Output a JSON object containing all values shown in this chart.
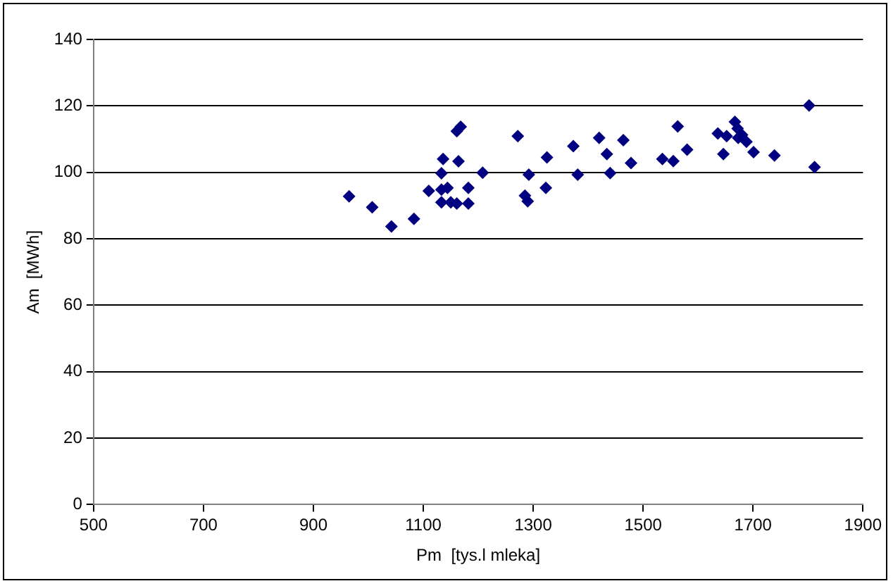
{
  "chart_data": {
    "type": "scatter",
    "xlabel": "Pm  [tys.l mleka]",
    "ylabel": "Am  [MWh]",
    "xlim": [
      500,
      1900
    ],
    "xticks": [
      500,
      700,
      900,
      1100,
      1300,
      1500,
      1700,
      1900
    ],
    "ylim": [
      0,
      140
    ],
    "yticks": [
      0,
      20,
      40,
      60,
      80,
      100,
      120,
      140
    ],
    "grid": "y",
    "legend": false,
    "marker": "diamond",
    "series": [
      {
        "color": "#000080",
        "x": [
          965,
          1007,
          1042,
          1083,
          1110,
          1133,
          1144,
          1133,
          1136,
          1133,
          1150,
          1161,
          1182,
          1182,
          1164,
          1161,
          1168,
          1208,
          1272,
          1285,
          1290,
          1292,
          1323,
          1325,
          1373,
          1381,
          1420,
          1434,
          1440,
          1464,
          1478,
          1535,
          1555,
          1563,
          1580,
          1636,
          1652,
          1646,
          1667,
          1672,
          1673,
          1680,
          1688,
          1701,
          1739,
          1802,
          1812
        ],
        "values": [
          92.8,
          89.5,
          83.7,
          86,
          94.4,
          94.8,
          95.3,
          99.7,
          104,
          91,
          91,
          90.6,
          90.6,
          95.3,
          103.3,
          112.4,
          113.7,
          99.9,
          110.9,
          93,
          91.3,
          99.3,
          95.3,
          104.5,
          107.9,
          99.3,
          110.4,
          105.5,
          99.8,
          109.7,
          102.8,
          104,
          103.4,
          113.8,
          106.8,
          111.7,
          110.9,
          105.5,
          115.2,
          113.2,
          110.4,
          111.3,
          109.2,
          106.1,
          105.1,
          120.1,
          101.6
        ]
      }
    ]
  }
}
